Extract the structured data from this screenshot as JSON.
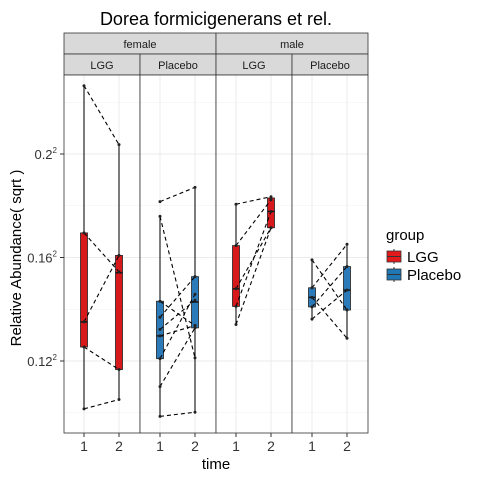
{
  "chart_data": {
    "type": "box",
    "title": "Dorea formicigenerans et rel.",
    "xlabel": "time",
    "ylabel": "Relative Abundance( sqrt )",
    "y_scale": "sqrt",
    "y_ticks": [
      {
        "base": "0.12",
        "exp": "2"
      },
      {
        "base": "0.16",
        "exp": "2"
      },
      {
        "base": "0.2",
        "exp": "2"
      }
    ],
    "facet_rows": [
      "female",
      "male"
    ],
    "facet_cols": [
      "LGG",
      "Placebo"
    ],
    "x_categories": [
      "1",
      "2"
    ],
    "legend": {
      "title": "group",
      "position": "right",
      "items": [
        {
          "label": "LGG",
          "color": "#e31a1c"
        },
        {
          "label": "Placebo",
          "color": "#1f78b4"
        }
      ]
    },
    "grid": true,
    "panels": [
      {
        "sex": "female",
        "group": "LGG",
        "color": "#d7191c",
        "boxes": [
          {
            "time": "1",
            "min": 0.1015,
            "q1": 0.1254,
            "median": 0.1351,
            "q3": 0.1695,
            "max": 0.2264
          },
          {
            "time": "2",
            "min": 0.1051,
            "q1": 0.1167,
            "median": 0.1541,
            "q3": 0.1608,
            "max": 0.2036
          }
        ],
        "pairs": [
          [
            0.2264,
            0.2036
          ],
          [
            0.1695,
            0.1545
          ],
          [
            0.1351,
            0.1608
          ],
          [
            0.1254,
            0.1167
          ],
          [
            0.1015,
            0.1051
          ]
        ]
      },
      {
        "sex": "female",
        "group": "Placebo",
        "color": "#2b7bba",
        "boxes": [
          {
            "time": "1",
            "min": 0.0986,
            "q1": 0.1209,
            "median": 0.1297,
            "q3": 0.1431,
            "max": 0.1759
          },
          {
            "time": "2",
            "min": 0.1002,
            "q1": 0.1328,
            "median": 0.1428,
            "q3": 0.1526,
            "max": 0.1871
          }
        ],
        "pairs": [
          [
            0.1816,
            0.1871
          ],
          [
            0.1759,
            0.1212
          ],
          [
            0.1431,
            0.1337
          ],
          [
            0.1369,
            0.1526
          ],
          [
            0.1322,
            0.1435
          ],
          [
            0.1297,
            0.1337
          ],
          [
            0.1209,
            0.1458
          ],
          [
            0.1101,
            0.1328
          ],
          [
            0.0986,
            0.1002
          ]
        ]
      },
      {
        "sex": "male",
        "group": "LGG",
        "color": "#d7191c",
        "boxes": [
          {
            "time": "1",
            "min": 0.1341,
            "q1": 0.1411,
            "median": 0.1479,
            "q3": 0.1646,
            "max": 0.1806
          },
          {
            "time": "2",
            "min": 0.1715,
            "q1": 0.1715,
            "median": 0.1778,
            "q3": 0.183,
            "max": 0.1835
          }
        ],
        "pairs": [
          [
            0.1806,
            0.1835
          ],
          [
            0.1646,
            0.1823
          ],
          [
            0.1479,
            0.1715
          ],
          [
            0.1411,
            0.1778
          ],
          [
            0.1341,
            0.1715
          ]
        ]
      },
      {
        "sex": "male",
        "group": "Placebo",
        "color": "#2b7bba",
        "boxes": [
          {
            "time": "1",
            "min": 0.1362,
            "q1": 0.1409,
            "median": 0.1446,
            "q3": 0.1483,
            "max": 0.1591
          },
          {
            "time": "2",
            "min": 0.1288,
            "q1": 0.1397,
            "median": 0.1474,
            "q3": 0.1565,
            "max": 0.1651
          }
        ],
        "pairs": [
          [
            0.1591,
            0.1397
          ],
          [
            0.1483,
            0.1651
          ],
          [
            0.1446,
            0.1288
          ],
          [
            0.1409,
            0.1565
          ],
          [
            0.1362,
            0.1474
          ]
        ]
      }
    ]
  }
}
